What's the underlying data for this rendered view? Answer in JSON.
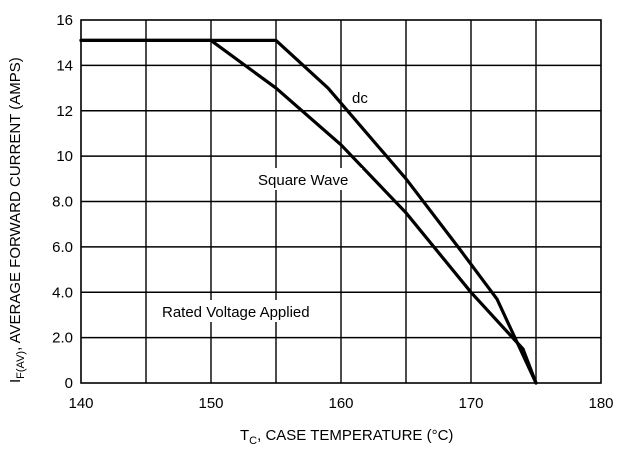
{
  "chart_data": {
    "type": "line",
    "xlabel": {
      "prefix": "T",
      "subscript": "C",
      "rest": ", CASE TEMPERATURE (°C)"
    },
    "ylabel": {
      "prefix": "I",
      "subscript": "F(AV)",
      "rest": ", AVERAGE FORWARD CURRENT (AMPS)"
    },
    "xlim": [
      140,
      180
    ],
    "ylim": [
      0,
      16
    ],
    "xticks": [
      140,
      150,
      160,
      170,
      180
    ],
    "xtick_labels": [
      "140",
      "150",
      "160",
      "170",
      "180"
    ],
    "yticks": [
      0,
      2,
      4,
      6,
      8,
      10,
      12,
      14,
      16
    ],
    "ytick_labels": [
      "0",
      "2.0",
      "4.0",
      "6.0",
      "8.0",
      "10",
      "12",
      "14",
      "16"
    ],
    "x_grid_step": 5,
    "y_grid_step": 2,
    "grid": true,
    "series": [
      {
        "name": "dc",
        "x": [
          140,
          155,
          159,
          165,
          169,
          172,
          175
        ],
        "y": [
          15.1,
          15.1,
          13,
          9,
          6,
          3.7,
          0
        ]
      },
      {
        "name": "Square Wave",
        "x": [
          140,
          150,
          155,
          160,
          165,
          170,
          174,
          175
        ],
        "y": [
          15.1,
          15.1,
          13,
          10.5,
          7.5,
          4,
          1.5,
          0
        ]
      }
    ],
    "annotations": [
      {
        "text": "Rated Voltage Applied"
      }
    ]
  }
}
